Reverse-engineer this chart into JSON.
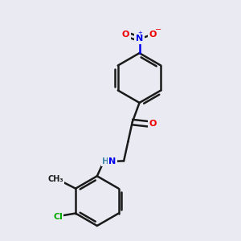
{
  "background_color": "#eaeaf2",
  "bond_color": "#1a1a1a",
  "N_color": "#0000ee",
  "O_color": "#ee0000",
  "Cl_color": "#00aa00",
  "NH_color": "#4488aa",
  "figsize": [
    3.0,
    3.0
  ],
  "dpi": 100,
  "xlim": [
    0,
    10
  ],
  "ylim": [
    0,
    10
  ]
}
